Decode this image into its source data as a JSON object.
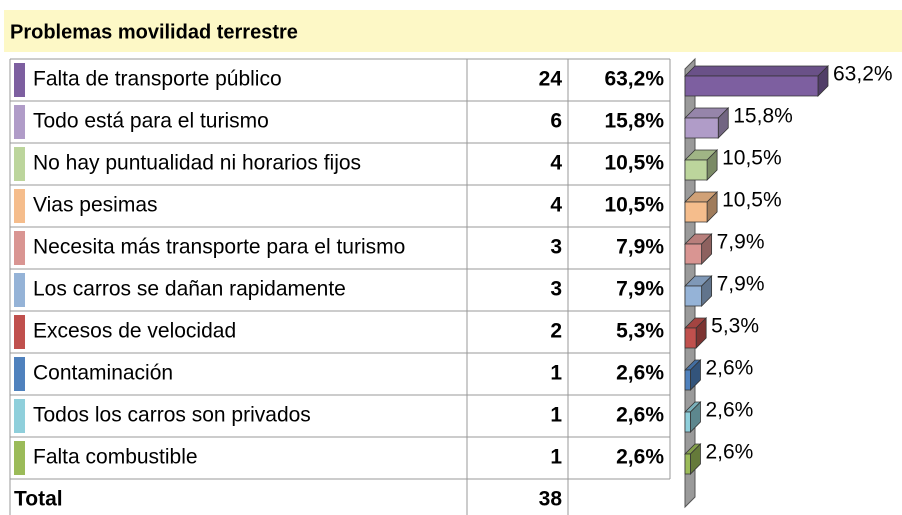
{
  "chart_data": {
    "type": "bar",
    "title": "Problemas movilidad terrestre",
    "categories": [
      "Falta de transporte público",
      "Todo está para el turismo",
      "No hay puntualidad ni horarios fijos",
      "Vias pesimas",
      "Necesita más transporte para el turismo",
      "Los carros se dañan rapidamente",
      "Excesos de velocidad",
      "Contaminación",
      "Todos los carros son privados",
      "Falta combustible"
    ],
    "counts": [
      24,
      6,
      4,
      4,
      3,
      3,
      2,
      1,
      1,
      1
    ],
    "values": [
      63.2,
      15.8,
      10.5,
      10.5,
      7.9,
      7.9,
      5.3,
      2.6,
      2.6,
      2.6
    ],
    "value_labels": [
      "63,2%",
      "15,8%",
      "10,5%",
      "10,5%",
      "7,9%",
      "7,9%",
      "5,3%",
      "2,6%",
      "2,6%",
      "2,6%"
    ],
    "colors": [
      "#7d5fa0",
      "#b09cc8",
      "#bcd59c",
      "#f5bd8c",
      "#d99592",
      "#95b3d7",
      "#c0504d",
      "#4f81bd",
      "#8fcfdb",
      "#9bbb59"
    ],
    "total_label": "Total",
    "total": 38
  }
}
